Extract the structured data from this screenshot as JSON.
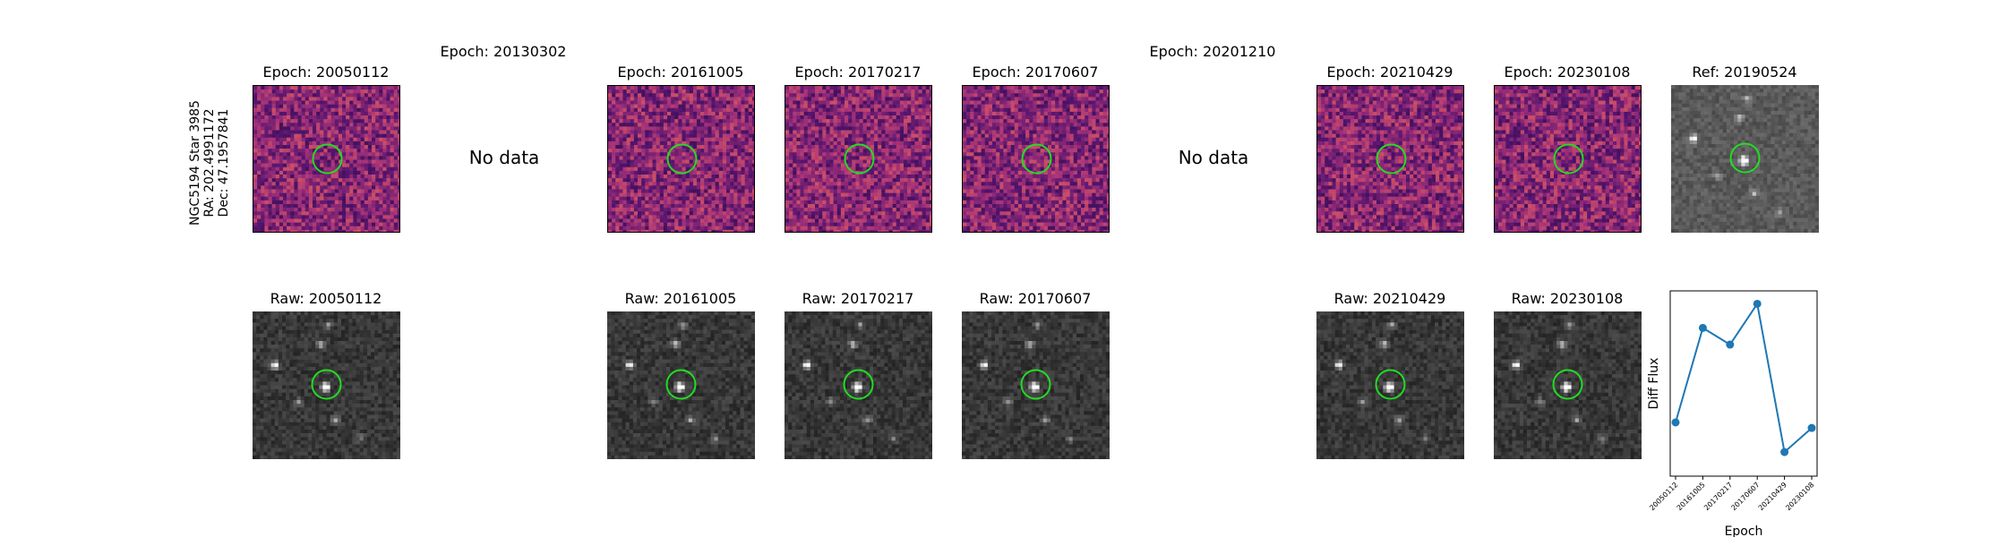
{
  "target": {
    "line1": "NGC5194 Star 3985",
    "line2": "RA: 202.4991172",
    "line3": "Dec: 47.1957841"
  },
  "epochs": [
    {
      "diff_title": "Epoch: 20050112",
      "raw_title": "Raw: 20050112"
    },
    {
      "diff_title": "Epoch: 20130302",
      "no_data": "No data"
    },
    {
      "diff_title": "Epoch: 20161005",
      "raw_title": "Raw: 20161005"
    },
    {
      "diff_title": "Epoch: 20170217",
      "raw_title": "Raw: 20170217"
    },
    {
      "diff_title": "Epoch: 20170607",
      "raw_title": "Raw: 20170607"
    },
    {
      "diff_title": "Epoch: 20201210",
      "no_data": "No data"
    },
    {
      "diff_title": "Epoch: 20210429",
      "raw_title": "Raw: 20210429"
    },
    {
      "diff_title": "Epoch: 20230108",
      "raw_title": "Raw: 20230108"
    }
  ],
  "reference": {
    "title": "Ref: 20190524"
  },
  "colors": {
    "circle": "#22dd22",
    "line": "#1f77b4"
  },
  "chart_data": {
    "type": "line",
    "xlabel": "Epoch",
    "ylabel": "Diff Flux",
    "x": [
      "20050112",
      "20161005",
      "20170217",
      "20170607",
      "20210429",
      "20230108"
    ],
    "values": [
      0.29,
      0.8,
      0.71,
      0.93,
      0.13,
      0.26
    ],
    "yticks_shown": false
  }
}
